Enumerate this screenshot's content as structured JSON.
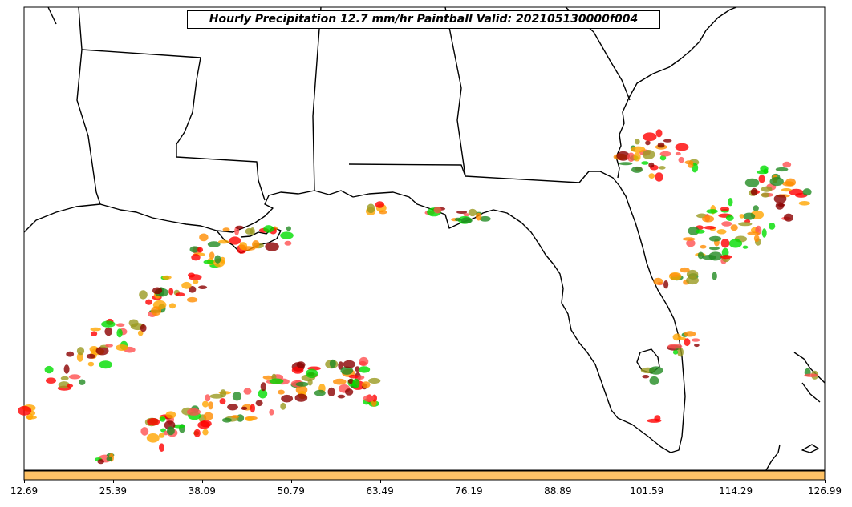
{
  "title": "Hourly Precipitation 12.7 mm/hr Paintball Valid: 202105130000f004",
  "colors": {
    "land_border": "#000000",
    "colorbar_fill": "#ffc266",
    "paintball_palette": [
      "#ff0000",
      "#8b0000",
      "#ff8c00",
      "#ffa500",
      "#228b22",
      "#00dd00",
      "#9a9a20",
      "#ff5050"
    ]
  },
  "colorbar": {
    "fill_color": "#ffc266",
    "ticks": [
      "12.69",
      "25.39",
      "38.09",
      "50.79",
      "63.49",
      "76.19",
      "88.89",
      "101.59",
      "114.29",
      "126.99"
    ]
  }
}
